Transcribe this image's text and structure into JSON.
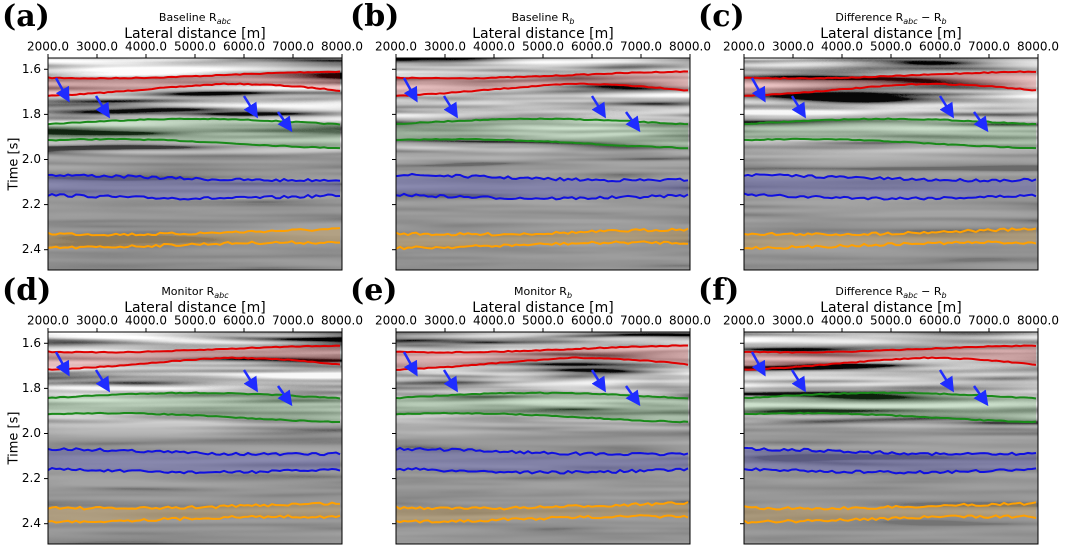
{
  "panels": [
    {
      "label": "(a)",
      "title": [
        {
          "text": "Baseline R"
        },
        {
          "sub": "abc"
        }
      ]
    },
    {
      "label": "(b)",
      "title": [
        {
          "text": "Baseline R"
        },
        {
          "sub": "b"
        }
      ]
    },
    {
      "label": "(c)",
      "title": [
        {
          "text": "Difference R"
        },
        {
          "sub": "abc"
        },
        {
          "text": " − R"
        },
        {
          "sub": "b"
        }
      ]
    },
    {
      "label": "(d)",
      "title": [
        {
          "text": "Monitor R"
        },
        {
          "sub": "abc"
        }
      ]
    },
    {
      "label": "(e)",
      "title": [
        {
          "text": "Monitor R"
        },
        {
          "sub": "b"
        }
      ]
    },
    {
      "label": "(f)",
      "title": [
        {
          "text": "Difference R"
        },
        {
          "sub": "abc"
        },
        {
          "text": " − R"
        },
        {
          "sub": "b"
        }
      ]
    }
  ],
  "xlabel": "Lateral distance [m]",
  "ylabel": "Time [s]",
  "xlim": [
    2000,
    8000
  ],
  "ylim": [
    1.55,
    2.49
  ],
  "xticks": [
    {
      "value": 2000,
      "label": "2000.0"
    },
    {
      "value": 3000,
      "label": "3000.0"
    },
    {
      "value": 4000,
      "label": "4000.0"
    },
    {
      "value": 5000,
      "label": "5000.0"
    },
    {
      "value": 6000,
      "label": "6000.0"
    },
    {
      "value": 7000,
      "label": "7000.0"
    },
    {
      "value": 8000,
      "label": "8000.0"
    }
  ],
  "yticks": [
    1.6,
    1.8,
    {
      "value": 2.0,
      "label": "2.0"
    },
    2.2,
    2.4
  ]
}
